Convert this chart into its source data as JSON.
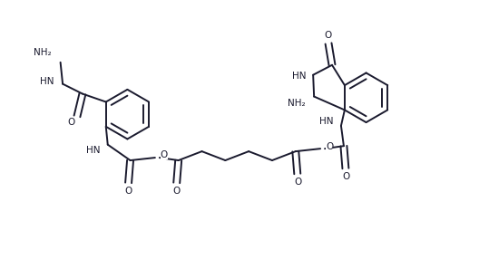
{
  "bg": "#ffffff",
  "lc": "#1a1a2e",
  "lw": 1.4,
  "fs": 7.5,
  "xlim": [
    0,
    10.8
  ],
  "ylim": [
    0,
    5.5
  ]
}
